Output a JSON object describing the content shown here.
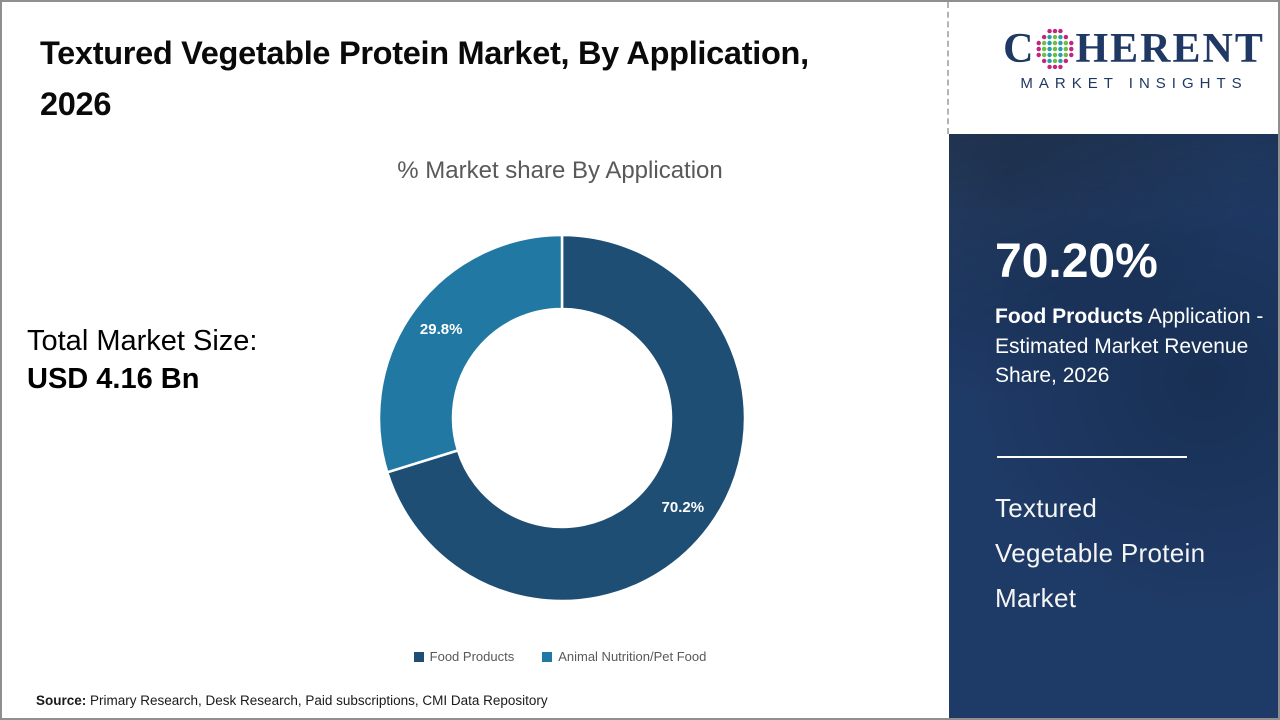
{
  "slide": {
    "title": "Textured Vegetable Protein Market, By Application, 2026",
    "source_label": "Source:",
    "source_text": " Primary Research, Desk Research, Paid subscriptions, CMI Data Repository",
    "border_color": "#8f8f8f"
  },
  "left_panel": {
    "total_label": "Total Market Size:",
    "total_value": "USD 4.16 Bn"
  },
  "chart_data": {
    "type": "pie",
    "subtype": "donut",
    "title": "% Market share By Application",
    "categories": [
      "Food Products",
      "Animal Nutrition/Pet Food"
    ],
    "values": [
      70.2,
      29.8
    ],
    "slice_labels": [
      "70.2%",
      "29.8%"
    ],
    "colors": [
      "#1F4E74",
      "#2179A3"
    ],
    "start_angle_deg": 0,
    "direction": "clockwise",
    "legend_position": "bottom",
    "label_color": "#ffffff"
  },
  "sidebar": {
    "logo": {
      "brand_prefix": "C",
      "brand_suffix": "HERENT",
      "tagline": "MARKET INSIGHTS",
      "text_color": "#1F3864",
      "globe_colors": {
        "outer": "#C2247E",
        "teal": "#2B9FA8",
        "green": "#6CBE45"
      }
    },
    "panel_bg": "#1E3A66",
    "stat_value": "70.20%",
    "stat_bold": "Food Products",
    "stat_rest": " Application - Estimated Market Revenue Share, 2026",
    "panel_title_lines": [
      "Textured",
      "Vegetable Protein",
      "Market"
    ]
  }
}
